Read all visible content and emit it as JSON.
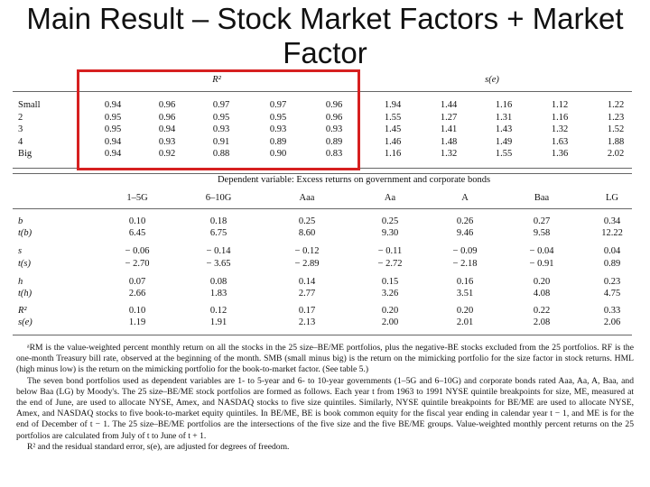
{
  "title": "Main Result – Stock Market Factors + Market Factor",
  "top_table": {
    "headers": [
      "R²",
      "s(e)"
    ],
    "rows": [
      {
        "label": "Small",
        "values": [
          "0.94",
          "0.96",
          "0.97",
          "0.97",
          "0.96",
          "1.94",
          "1.44",
          "1.16",
          "1.12",
          "1.22"
        ]
      },
      {
        "label": "2",
        "values": [
          "0.95",
          "0.96",
          "0.95",
          "0.95",
          "0.96",
          "1.55",
          "1.27",
          "1.31",
          "1.16",
          "1.23"
        ]
      },
      {
        "label": "3",
        "values": [
          "0.95",
          "0.94",
          "0.93",
          "0.93",
          "0.93",
          "1.45",
          "1.41",
          "1.43",
          "1.32",
          "1.52"
        ]
      },
      {
        "label": "4",
        "values": [
          "0.94",
          "0.93",
          "0.91",
          "0.89",
          "0.89",
          "1.46",
          "1.48",
          "1.49",
          "1.63",
          "1.88"
        ]
      },
      {
        "label": "Big",
        "values": [
          "0.94",
          "0.92",
          "0.88",
          "0.90",
          "0.83",
          "1.16",
          "1.32",
          "1.55",
          "1.36",
          "2.02"
        ]
      }
    ]
  },
  "bottom_table": {
    "caption": "Dependent variable: Excess returns on government and corporate bonds",
    "columns": [
      "1–5G",
      "6–10G",
      "Aaa",
      "Aa",
      "A",
      "Baa",
      "LG"
    ],
    "rows": [
      {
        "label": "b",
        "values": [
          "0.10",
          "0.18",
          "0.25",
          "0.25",
          "0.26",
          "0.27",
          "0.34"
        ]
      },
      {
        "label": "t(b)",
        "values": [
          "6.45",
          "6.75",
          "8.60",
          "9.30",
          "9.46",
          "9.58",
          "12.22"
        ]
      },
      {
        "label": "s",
        "values": [
          "− 0.06",
          "− 0.14",
          "− 0.12",
          "− 0.11",
          "− 0.09",
          "− 0.04",
          "0.04"
        ]
      },
      {
        "label": "t(s)",
        "values": [
          "− 2.70",
          "− 3.65",
          "− 2.89",
          "− 2.72",
          "− 2.18",
          "− 0.91",
          "0.89"
        ]
      },
      {
        "label": "h",
        "values": [
          "0.07",
          "0.08",
          "0.14",
          "0.15",
          "0.16",
          "0.20",
          "0.23"
        ]
      },
      {
        "label": "t(h)",
        "values": [
          "2.66",
          "1.83",
          "2.77",
          "3.26",
          "3.51",
          "4.08",
          "4.75"
        ]
      },
      {
        "label": "R²",
        "values": [
          "0.10",
          "0.12",
          "0.17",
          "0.20",
          "0.20",
          "0.22",
          "0.33"
        ]
      },
      {
        "label": "s(e)",
        "values": [
          "1.19",
          "1.91",
          "2.13",
          "2.00",
          "2.01",
          "2.08",
          "2.06"
        ]
      }
    ]
  },
  "notes": [
    "ᵃRM is the value-weighted percent monthly return on all the stocks in the 25 size–BE/ME portfolios, plus the negative-BE stocks excluded from the 25 portfolios. RF is the one-month Treasury bill rate, observed at the beginning of the month. SMB (small minus big) is the return on the mimicking portfolio for the size factor in stock returns. HML (high minus low) is the return on the mimicking portfolio for the book-to-market factor. (See table 5.)",
    "The seven bond portfolios used as dependent variables are 1- to 5-year and 6- to 10-year governments (1–5G and 6–10G) and corporate bonds rated Aaa, Aa, A, Baa, and below Baa (LG) by Moody's. The 25 size–BE/ME stock portfolios are formed as follows. Each year t from 1963 to 1991 NYSE quintile breakpoints for size, ME, measured at the end of June, are used to allocate NYSE, Amex, and NASDAQ stocks to five size quintiles. Similarly, NYSE quintile breakpoints for BE/ME are used to allocate NYSE, Amex, and NASDAQ stocks to five book-to-market equity quintiles. In BE/ME, BE is book common equity for the fiscal year ending in calendar year t − 1, and ME is for the end of December of t − 1. The 25 size–BE/ME portfolios are the intersections of the five size and the five BE/ME groups. Value-weighted monthly percent returns on the 25 portfolios are calculated from July of t to June of t + 1.",
    "R² and the residual standard error, s(e), are adjusted for degrees of freedom."
  ]
}
